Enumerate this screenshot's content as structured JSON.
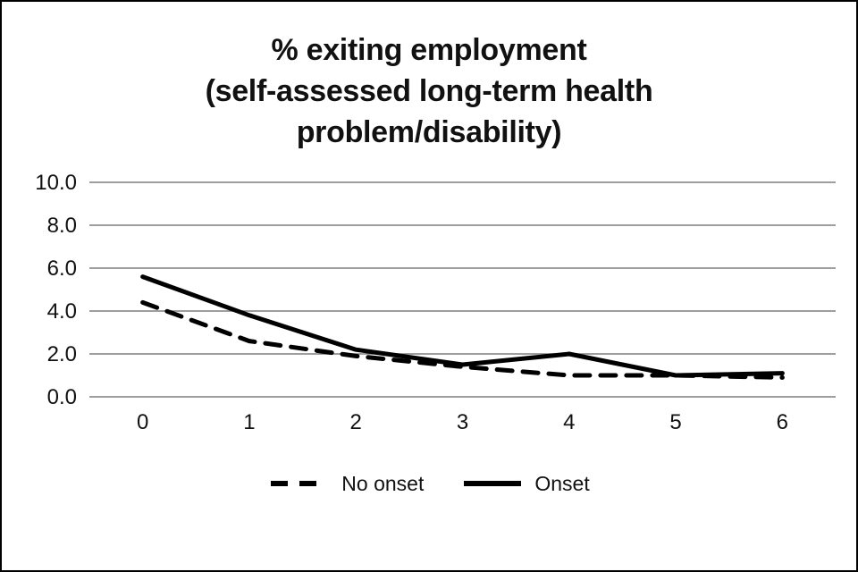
{
  "figure": {
    "title_lines": [
      "% exiting employment",
      "(self-assessed long-term health",
      "problem/disability)"
    ]
  },
  "chart_data": {
    "type": "line",
    "title": "% exiting employment (self-assessed long-term health problem/disability)",
    "categories": [
      "0",
      "1",
      "2",
      "3",
      "4",
      "5",
      "6"
    ],
    "series": [
      {
        "name": "No onset",
        "style": "dashed",
        "values": [
          4.4,
          2.6,
          1.9,
          1.4,
          1.0,
          1.0,
          0.9
        ]
      },
      {
        "name": "Onset",
        "style": "solid",
        "values": [
          5.6,
          3.8,
          2.2,
          1.5,
          2.0,
          1.0,
          1.1
        ]
      }
    ],
    "xlabel": "",
    "ylabel": "",
    "ylim": [
      0,
      10
    ],
    "yticks": [
      10.0,
      8.0,
      6.0,
      4.0,
      2.0,
      0.0
    ],
    "ytick_labels": [
      "10.0",
      "8.0",
      "6.0",
      "4.0",
      "2.0",
      "0.0"
    ],
    "grid": true,
    "legend_position": "bottom"
  },
  "colors": {
    "line": "#000000",
    "grid": "#7f7f7f",
    "text": "#111111",
    "border": "#000000",
    "background": "#ffffff"
  }
}
